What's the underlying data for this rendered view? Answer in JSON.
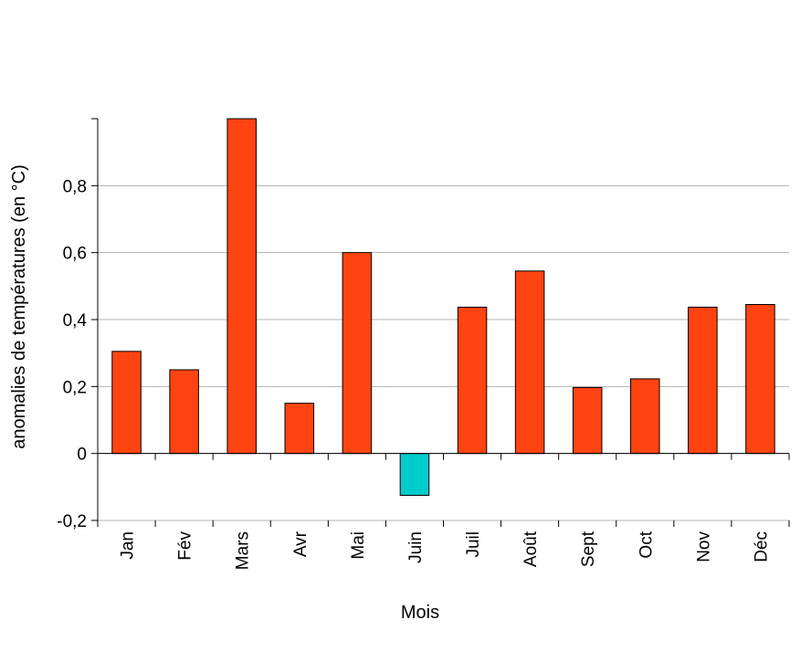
{
  "chart_data": {
    "type": "bar",
    "title": "",
    "xlabel": "Mois",
    "ylabel": "anomalies de températures (en °C)",
    "categories": [
      "Jan",
      "Fév",
      "Mars",
      "Avr",
      "Mai",
      "Juin",
      "Juil",
      "Août",
      "Sept",
      "Oct",
      "Nov",
      "Déc"
    ],
    "values": [
      0.305,
      0.25,
      1.0,
      0.15,
      0.6,
      -0.125,
      0.437,
      0.545,
      0.197,
      0.223,
      0.437,
      0.445
    ],
    "ylim": [
      -0.2,
      1
    ],
    "yticks": [
      -0.2,
      0,
      0.2,
      0.4,
      0.6,
      0.8
    ],
    "ytick_labels": [
      "-0,2",
      "0",
      "0,2",
      "0,4",
      "0,6",
      "0,8"
    ],
    "grid": true,
    "colors": {
      "positive": "#ff4411",
      "negative": "#00cccc",
      "grid": "#b3b3b3",
      "axis": "#000000"
    }
  }
}
